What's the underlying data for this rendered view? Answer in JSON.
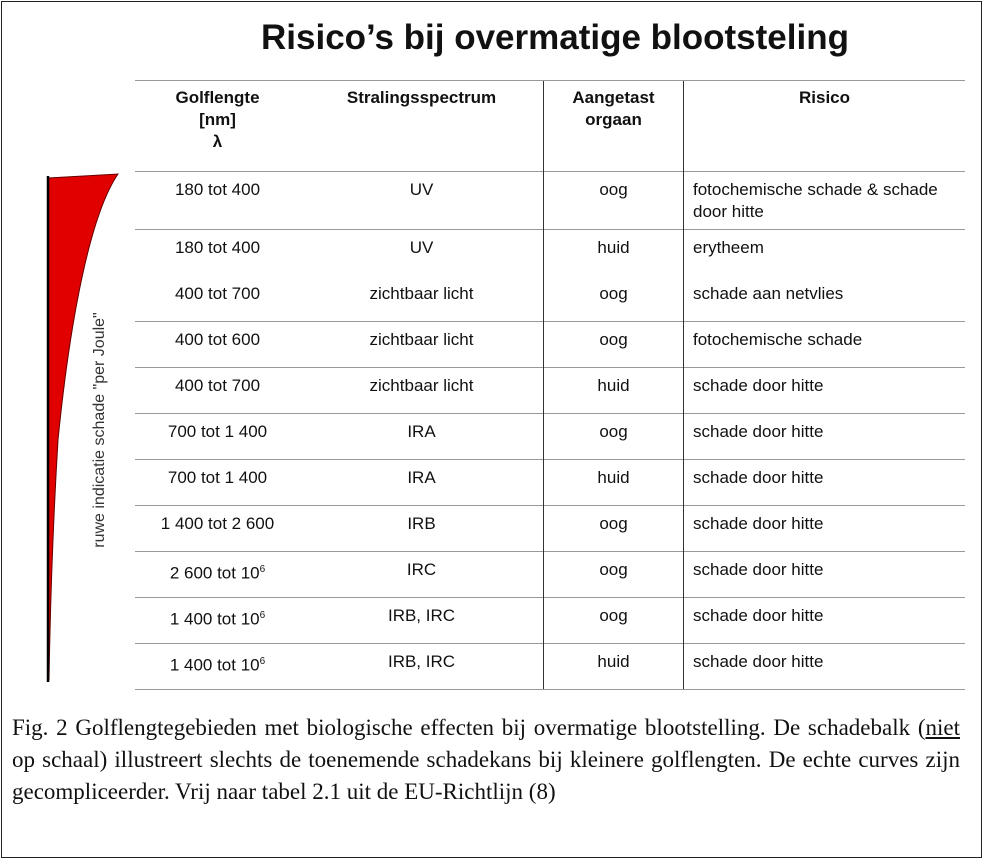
{
  "title": "Risico’s bij overmatige blootsteling",
  "side_label": "ruwe indicatie schade \"per Joule\"",
  "table": {
    "headers": [
      [
        "Golflengte",
        "[nm]",
        "λ"
      ],
      [
        "Stralingsspectrum"
      ],
      [
        "Aangetast",
        "orgaan"
      ],
      [
        "Risico"
      ]
    ],
    "rows": [
      {
        "wavelength": "180 tot 400",
        "spectrum": "UV",
        "organ": "oog",
        "risk": "fotochemische schade & schade door hitte"
      },
      {
        "wavelength": "180 tot 400",
        "spectrum": "UV",
        "organ": "huid",
        "risk": "erytheem"
      },
      {
        "wavelength": "400 tot 700",
        "spectrum": "zichtbaar licht",
        "organ": "oog",
        "risk": "schade aan netvlies"
      },
      {
        "wavelength": "400 tot 600",
        "spectrum": "zichtbaar licht",
        "organ": "oog",
        "risk": "fotochemische schade"
      },
      {
        "wavelength": "400 tot 700",
        "spectrum": "zichtbaar licht",
        "organ": "huid",
        "risk": "schade door hitte"
      },
      {
        "wavelength": "700 tot 1 400",
        "spectrum": "IRA",
        "organ": "oog",
        "risk": "schade door hitte"
      },
      {
        "wavelength": "700 tot 1 400",
        "spectrum": "IRA",
        "organ": "huid",
        "risk": "schade door hitte"
      },
      {
        "wavelength": "1 400 tot 2 600",
        "spectrum": "IRB",
        "organ": "oog",
        "risk": "schade door hitte"
      },
      {
        "wavelength": "2 600 tot 10",
        "wavelength_sup": "6",
        "spectrum": "IRC",
        "organ": "oog",
        "risk": "schade door hitte"
      },
      {
        "wavelength": "1 400 tot 10",
        "wavelength_sup": "6",
        "spectrum": "IRB, IRC",
        "organ": "oog",
        "risk": "schade door hitte"
      },
      {
        "wavelength": "1 400 tot 10",
        "wavelength_sup": "6",
        "spectrum": "IRB, IRC",
        "organ": "huid",
        "risk": "schade door hitte"
      }
    ]
  },
  "caption": [
    "Fig. 2 Golflengtegebieden met biologische effecten bij overmatige blootstelling. De schadebalk (",
    "niet",
    " op schaal) illustreert slechts de toenemende schadekans bij kleinere golflengten. De echte curves zijn gecompliceerder. Vrij naar tabel 2.1 uit de EU-Richtlijn (8)"
  ]
}
